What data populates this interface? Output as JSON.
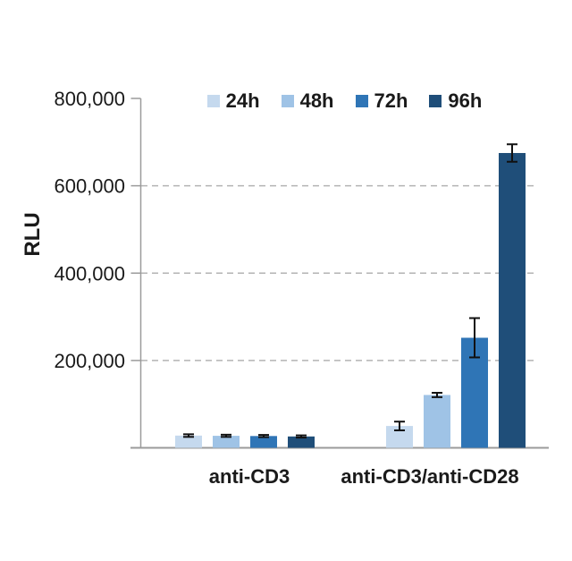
{
  "chart_data": {
    "type": "bar",
    "title": "",
    "xlabel": "",
    "ylabel": "RLU",
    "categories": [
      "anti-CD3",
      "anti-CD3/anti-CD28"
    ],
    "series": [
      {
        "name": "24h",
        "color": "#c5d9ee",
        "values": [
          28000,
          50000
        ],
        "errors": [
          3000,
          10000
        ]
      },
      {
        "name": "48h",
        "color": "#9fc3e6",
        "values": [
          27500,
          121000
        ],
        "errors": [
          2500,
          5000
        ]
      },
      {
        "name": "72h",
        "color": "#2f75b6",
        "values": [
          27000,
          252000
        ],
        "errors": [
          2500,
          45000
        ]
      },
      {
        "name": "96h",
        "color": "#1f4e79",
        "values": [
          26000,
          675000
        ],
        "errors": [
          2500,
          20000
        ]
      }
    ],
    "ylim": [
      0,
      800000
    ],
    "yticks": [
      {
        "value": 200000,
        "label": "200,000"
      },
      {
        "value": 400000,
        "label": "400,000"
      },
      {
        "value": 600000,
        "label": "600,000"
      },
      {
        "value": 800000,
        "label": "800,000"
      }
    ],
    "gridline_values": [
      200000,
      400000,
      600000
    ],
    "grid_style": "dashed",
    "legend_position": "top-center",
    "error_bars": true,
    "colors": {
      "axis": "#9b9b9b",
      "grid": "#b3b3b3",
      "error_bar": "#111111",
      "text": "#1a1a1a"
    }
  }
}
